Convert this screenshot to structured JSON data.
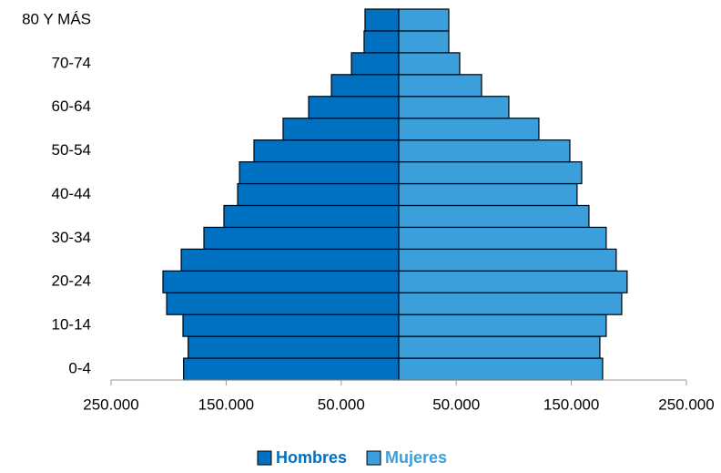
{
  "chart_data": {
    "type": "population_pyramid",
    "categories": [
      "0-4",
      null,
      "10-14",
      null,
      "20-24",
      null,
      "30-34",
      null,
      "40-44",
      null,
      "50-54",
      null,
      "60-64",
      null,
      "70-74",
      null,
      "80 Y MÁS"
    ],
    "series": [
      {
        "name": "Hombres",
        "color": "#0070c0",
        "values": [
          -187000,
          -183000,
          -187500,
          -201700,
          -204900,
          -189000,
          -169300,
          -151900,
          -140000,
          -138400,
          -125800,
          -100500,
          -78300,
          -58500,
          -41100,
          -30100,
          -29300
        ]
      },
      {
        "name": "Mujeres",
        "color": "#3a9fdb",
        "values": [
          177200,
          174800,
          180300,
          193800,
          198500,
          189000,
          180300,
          165300,
          155000,
          159000,
          148700,
          121800,
          95700,
          72000,
          53000,
          43500,
          43500
        ]
      }
    ],
    "xlim": [
      -250000,
      250000
    ],
    "xticks": [
      {
        "value": -250000,
        "label": "250.000"
      },
      {
        "value": -150000,
        "label": "150.000"
      },
      {
        "value": -50000,
        "label": "50.000"
      },
      {
        "value": 50000,
        "label": "50.000"
      },
      {
        "value": 150000,
        "label": "150.000"
      },
      {
        "value": 250000,
        "label": "250.000"
      }
    ],
    "legend": "bottom"
  }
}
